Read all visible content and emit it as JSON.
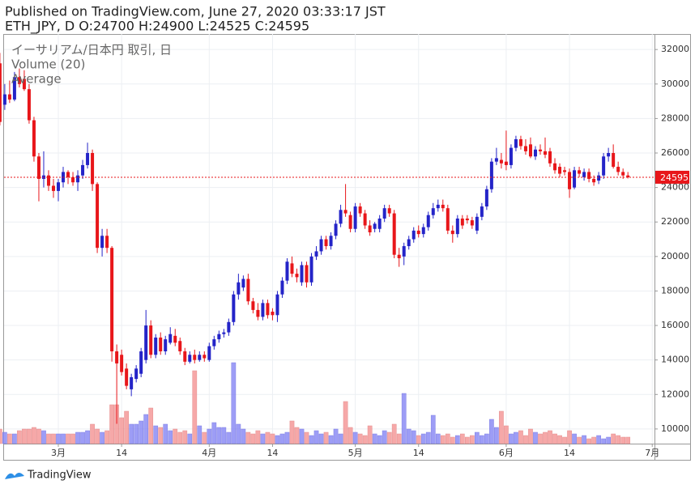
{
  "header": {
    "published": "Published on TradingView.com, June 27, 2020 03:33:17 JST",
    "symbol_line": "ETH_JPY, D O:24700 H:24900 L:24525 C:24595"
  },
  "footer": {
    "logo": "TradingView"
  },
  "chart_data": {
    "type": "candlestick",
    "legend": [
      "イーサリアム/日本円 取引, 日",
      "Volume (20)",
      "Average"
    ],
    "up_color": "#2424c8",
    "down_color": "#e8161a",
    "volume_up_color": "#8c8cf5",
    "volume_down_color": "#f59a9a",
    "last_price_color": "#e8161a",
    "ylim": [
      9150,
      32900
    ],
    "yticks": [
      10000,
      12000,
      14000,
      16000,
      18000,
      20000,
      22000,
      24000,
      26000,
      28000,
      30000,
      32000
    ],
    "grid": true,
    "categories": [
      null,
      null,
      null,
      null,
      null,
      null,
      null,
      null,
      null,
      null,
      null,
      null,
      "3月",
      null,
      null,
      null,
      null,
      null,
      null,
      null,
      null,
      null,
      null,
      null,
      null,
      "14",
      null,
      null,
      null,
      null,
      null,
      null,
      null,
      null,
      null,
      null,
      null,
      null,
      null,
      null,
      null,
      null,
      null,
      "4月",
      null,
      null,
      null,
      null,
      null,
      null,
      null,
      null,
      null,
      null,
      null,
      null,
      "14",
      null,
      null,
      null,
      null,
      null,
      null,
      null,
      null,
      null,
      null,
      null,
      null,
      null,
      null,
      null,
      null,
      "5月",
      null,
      null,
      null,
      null,
      null,
      null,
      null,
      null,
      null,
      null,
      null,
      null,
      "14",
      null,
      null,
      null,
      null,
      null,
      null,
      null,
      null,
      null,
      null,
      null,
      null,
      null,
      null,
      null,
      null,
      null,
      "6月",
      null,
      null,
      null,
      null,
      null,
      null,
      null,
      null,
      null,
      null,
      null,
      null,
      "14",
      null,
      null,
      null,
      null,
      null,
      null,
      null,
      null,
      null,
      null,
      null,
      null,
      null,
      null,
      null,
      null,
      "7月"
    ],
    "open": [
      31200,
      28800,
      29400,
      29100,
      30400,
      30300,
      29700,
      27900,
      25800,
      24500,
      24700,
      24100,
      23800,
      24300,
      24900,
      24600,
      24300,
      24700,
      25300,
      26000,
      24200,
      20500,
      21200,
      20500,
      14500,
      14300,
      13500,
      12300,
      12900,
      13200,
      14000,
      16000,
      14300,
      15300,
      14500,
      15000,
      15400,
      15100,
      14500,
      13900,
      14300,
      14000,
      14300,
      14000,
      14800,
      15200,
      15500,
      15600,
      16200,
      17800,
      18200,
      18700,
      17400,
      16900,
      16500,
      17300,
      16800,
      16600,
      17800,
      18600,
      19600,
      19000,
      18500,
      19500,
      18500,
      20000,
      20300,
      21000,
      20600,
      21200,
      21900,
      22700,
      22400,
      21600,
      22900,
      22500,
      21800,
      21600,
      21600,
      22200,
      22800,
      22500,
      20100,
      20000,
      20600,
      21000,
      21500,
      21300,
      21700,
      22400,
      22800,
      23000,
      22800,
      21500,
      21300,
      22200,
      22200,
      22100,
      21500,
      22300,
      22900,
      23900,
      25500,
      25600,
      25500,
      25300,
      26300,
      26800,
      26400,
      26500,
      25800,
      26200,
      26100,
      26100,
      25400,
      25200,
      25000,
      24900,
      24000,
      25000,
      24600,
      24900,
      24500,
      24400,
      24700,
      25800,
      26000,
      25200,
      24900,
      24700,
      null,
      null,
      null,
      null,
      null
    ],
    "high": [
      31800,
      30000,
      30200,
      30700,
      30900,
      30800,
      30000,
      28100,
      26000,
      26100,
      25000,
      24500,
      24500,
      25200,
      25000,
      24900,
      25000,
      25600,
      26600,
      26200,
      24300,
      21600,
      21600,
      20600,
      14900,
      14600,
      13800,
      13200,
      13700,
      14700,
      16900,
      16300,
      15500,
      15600,
      15400,
      15900,
      15800,
      15300,
      14700,
      14500,
      14600,
      14500,
      14500,
      15000,
      15400,
      15700,
      15800,
      16400,
      18000,
      19000,
      18900,
      19000,
      17600,
      17300,
      17500,
      17500,
      17000,
      18000,
      18800,
      19900,
      20000,
      19300,
      19700,
      19700,
      20200,
      20600,
      21200,
      21200,
      21400,
      22100,
      23000,
      24200,
      22600,
      23100,
      23100,
      22700,
      22100,
      22000,
      22400,
      23000,
      23000,
      22700,
      20500,
      20800,
      21200,
      21700,
      21800,
      21900,
      22600,
      23100,
      23300,
      23300,
      23000,
      21800,
      22400,
      22400,
      22400,
      22300,
      22500,
      23100,
      24100,
      25700,
      26300,
      26000,
      27300,
      26500,
      27000,
      27000,
      26800,
      26900,
      26400,
      26500,
      26900,
      26300,
      25700,
      25400,
      25200,
      25100,
      25200,
      25200,
      25100,
      25100,
      24700,
      24900,
      26000,
      26300,
      26500,
      25500,
      25100,
      24900,
      null,
      null,
      null,
      null,
      null
    ],
    "low": [
      27600,
      28500,
      28900,
      29000,
      29800,
      29600,
      27700,
      25500,
      23200,
      24000,
      23800,
      23400,
      23200,
      24000,
      24200,
      24100,
      23800,
      24500,
      25100,
      23800,
      20200,
      20000,
      20200,
      13900,
      10300,
      13100,
      12300,
      11900,
      12700,
      13000,
      13800,
      14100,
      14100,
      14300,
      14300,
      14900,
      14800,
      14300,
      13700,
      13800,
      13800,
      13900,
      13900,
      13900,
      14600,
      15000,
      15300,
      15400,
      16000,
      17500,
      18000,
      17200,
      16700,
      16300,
      16300,
      16400,
      16300,
      16200,
      17600,
      18400,
      18800,
      18500,
      18300,
      18200,
      18300,
      19800,
      20100,
      20400,
      20400,
      21000,
      21700,
      22300,
      21400,
      21400,
      22300,
      21600,
      21200,
      21400,
      21400,
      22000,
      22300,
      19900,
      19400,
      19500,
      20400,
      20800,
      21100,
      21100,
      21500,
      22200,
      22600,
      22600,
      21300,
      20800,
      21100,
      21600,
      21900,
      21600,
      21300,
      22100,
      22700,
      23700,
      25300,
      25100,
      25000,
      25100,
      26100,
      26200,
      25900,
      25700,
      25600,
      25900,
      25700,
      25200,
      24800,
      24600,
      24700,
      23400,
      23900,
      24600,
      24400,
      24300,
      24100,
      24200,
      24500,
      25500,
      25100,
      24700,
      24500,
      24525,
      null,
      null,
      null,
      null,
      null
    ],
    "close": [
      27800,
      29400,
      29100,
      30400,
      30000,
      29700,
      27900,
      25800,
      24500,
      24700,
      24100,
      23800,
      24300,
      24900,
      24600,
      24300,
      24700,
      25300,
      26000,
      24200,
      20500,
      21200,
      20500,
      14500,
      13800,
      13300,
      12500,
      13000,
      13500,
      14500,
      16000,
      14300,
      15300,
      14500,
      15200,
      15500,
      15000,
      14500,
      13900,
      14300,
      14000,
      14300,
      14100,
      14800,
      15200,
      15500,
      15600,
      16200,
      17800,
      18500,
      18700,
      17400,
      16900,
      16500,
      17300,
      16600,
      16600,
      17800,
      18600,
      19700,
      19000,
      18800,
      19500,
      18500,
      20000,
      20300,
      21000,
      20600,
      21200,
      21900,
      22700,
      22500,
      21600,
      22900,
      22500,
      21800,
      21400,
      21900,
      22200,
      22800,
      22500,
      20100,
      19900,
      20600,
      21000,
      21500,
      21300,
      21700,
      22400,
      22800,
      23000,
      22800,
      21500,
      21300,
      22200,
      21800,
      22100,
      21800,
      22300,
      22900,
      23900,
      25500,
      25700,
      25400,
      25300,
      26300,
      26800,
      26400,
      26100,
      25800,
      26200,
      26100,
      25900,
      25400,
      25000,
      24800,
      24900,
      23900,
      25000,
      24800,
      24900,
      24500,
      24300,
      24700,
      25800,
      26000,
      25200,
      24900,
      24700,
      24595,
      null,
      null,
      null,
      null,
      null
    ],
    "volume": [
      18,
      14,
      12,
      12,
      16,
      18,
      18,
      20,
      18,
      16,
      12,
      12,
      12,
      12,
      12,
      12,
      14,
      14,
      16,
      24,
      18,
      14,
      16,
      48,
      48,
      32,
      40,
      24,
      24,
      28,
      36,
      44,
      22,
      20,
      24,
      16,
      18,
      14,
      16,
      12,
      90,
      22,
      14,
      18,
      26,
      20,
      20,
      14,
      100,
      24,
      18,
      14,
      12,
      16,
      12,
      14,
      12,
      10,
      12,
      14,
      28,
      20,
      18,
      14,
      10,
      16,
      12,
      14,
      10,
      18,
      12,
      52,
      20,
      14,
      12,
      10,
      22,
      12,
      10,
      16,
      14,
      24,
      12,
      62,
      18,
      16,
      10,
      12,
      14,
      35,
      12,
      10,
      12,
      8,
      10,
      12,
      8,
      10,
      14,
      10,
      12,
      30,
      20,
      40,
      22,
      12,
      14,
      16,
      10,
      18,
      14,
      12,
      14,
      16,
      12,
      10,
      8,
      16,
      12,
      8,
      10,
      6,
      8,
      10,
      6,
      8,
      12,
      10,
      8,
      8,
      null,
      null,
      null,
      null,
      null
    ]
  }
}
